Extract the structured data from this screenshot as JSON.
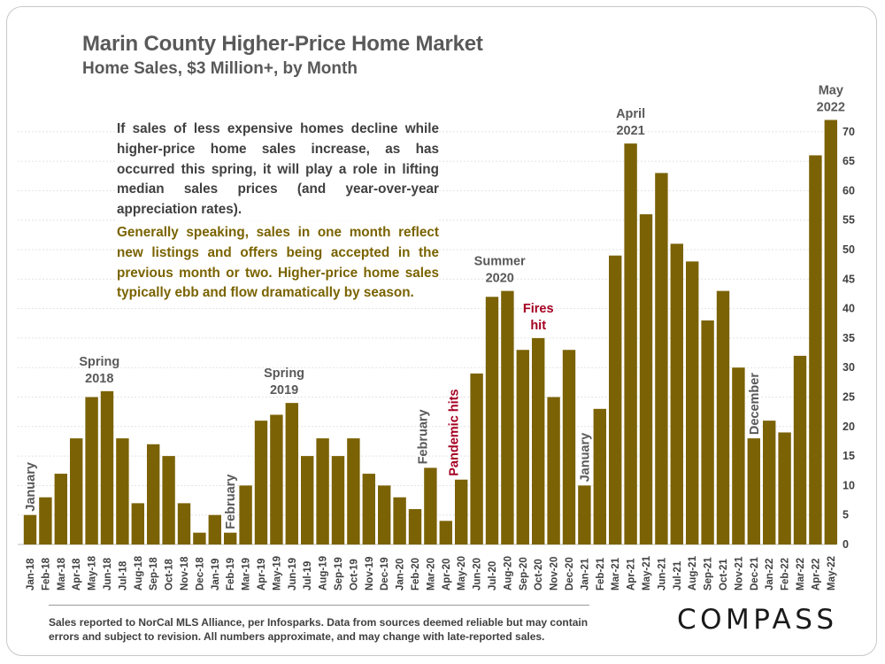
{
  "header": {
    "title": "Marin County Higher-Price Home Market",
    "subtitle": "Home Sales, $3 Million+, by Month"
  },
  "notes": {
    "paragraph1": "If sales of less expensive homes decline while higher-price home sales increase, as has occurred this spring, it will play a role in lifting median sales prices (and year-over-year appreciation rates).",
    "paragraph2": "Generally speaking, sales in one month reflect new listings and offers being accepted in the previous month or two. Higher-price home sales typically ebb and flow dramatically by season."
  },
  "footer": {
    "text": "Sales reported to NorCal MLS Alliance, per Infosparks. Data from sources deemed reliable but may contain errors and subject to revision. All numbers approximate, and may change with late-reported sales.",
    "logo": "COMPASS"
  },
  "colors": {
    "bar": "#7b6205",
    "annotation_default": "#595959",
    "annotation_red": "#a50021"
  },
  "chart_data": {
    "type": "bar",
    "title": "Marin County Higher-Price Home Market",
    "subtitle": "Home Sales, $3 Million+, by Month",
    "xlabel": "",
    "ylabel": "",
    "ylim": [
      0,
      75
    ],
    "yticks": [
      0,
      5,
      10,
      15,
      20,
      25,
      30,
      35,
      40,
      45,
      50,
      55,
      60,
      65,
      70
    ],
    "y_axis_side": "right",
    "grid": true,
    "categories": [
      "Jan-18",
      "Feb-18",
      "Mar-18",
      "Apr-18",
      "May-18",
      "Jun-18",
      "Jul-18",
      "Aug-18",
      "Sep-18",
      "Oct-18",
      "Nov-18",
      "Dec-18",
      "Jan-19",
      "Feb-19",
      "Mar-19",
      "Apr-19",
      "May-19",
      "Jun-19",
      "Jul-19",
      "Aug-19",
      "Sep-19",
      "Oct-19",
      "Nov-19",
      "Dec-19",
      "Jan-20",
      "Feb-20",
      "Mar-20",
      "Apr-20",
      "May-20",
      "Jun-20",
      "Jul-20",
      "Aug-20",
      "Sep-20",
      "Oct-20",
      "Nov-20",
      "Dec-20",
      "Jan-21",
      "Feb-21",
      "Mar-21",
      "Apr-21",
      "May-21",
      "Jun-21",
      "Jul-21",
      "Aug-21",
      "Sep-21",
      "Oct-21",
      "Nov-21",
      "Dec-21",
      "Jan-22",
      "Feb-22",
      "Mar-22",
      "Apr-22",
      "May-22"
    ],
    "values": [
      5,
      8,
      12,
      18,
      25,
      26,
      18,
      7,
      17,
      15,
      7,
      2,
      5,
      2,
      10,
      21,
      22,
      24,
      15,
      18,
      15,
      18,
      12,
      10,
      8,
      6,
      13,
      4,
      11,
      29,
      42,
      43,
      33,
      35,
      25,
      33,
      10,
      23,
      49,
      68,
      56,
      63,
      51,
      48,
      38,
      43,
      30,
      18,
      21,
      19,
      32,
      66,
      72
    ],
    "annotations": [
      {
        "text": "January",
        "index": 0,
        "rotated": true,
        "color": "#595959"
      },
      {
        "text": "Spring 2018",
        "lines": [
          "Spring",
          "2018"
        ],
        "index": 4.5,
        "color": "#595959"
      },
      {
        "text": "February",
        "index": 13,
        "rotated": true,
        "color": "#595959"
      },
      {
        "text": "Spring 2019",
        "lines": [
          "Spring",
          "2019"
        ],
        "index": 16.5,
        "color": "#595959"
      },
      {
        "text": "February",
        "index": 25.5,
        "rotated": true,
        "color": "#595959"
      },
      {
        "text": "Pandemic hits",
        "index": 27.5,
        "rotated": true,
        "color": "#a50021"
      },
      {
        "text": "Summer 2020",
        "lines": [
          "Summer",
          "2020"
        ],
        "index": 30.5,
        "color": "#595959"
      },
      {
        "text": "Fires hit",
        "lines": [
          "Fires",
          "hit"
        ],
        "index": 33,
        "color": "#a50021"
      },
      {
        "text": "January",
        "index": 36,
        "rotated": true,
        "color": "#595959"
      },
      {
        "text": "April 2021",
        "lines": [
          "April",
          "2021"
        ],
        "index": 39,
        "color": "#595959"
      },
      {
        "text": "December",
        "index": 47,
        "rotated": true,
        "color": "#595959"
      },
      {
        "text": "May 2022",
        "lines": [
          "May",
          "2022"
        ],
        "index": 52,
        "color": "#595959"
      }
    ]
  }
}
